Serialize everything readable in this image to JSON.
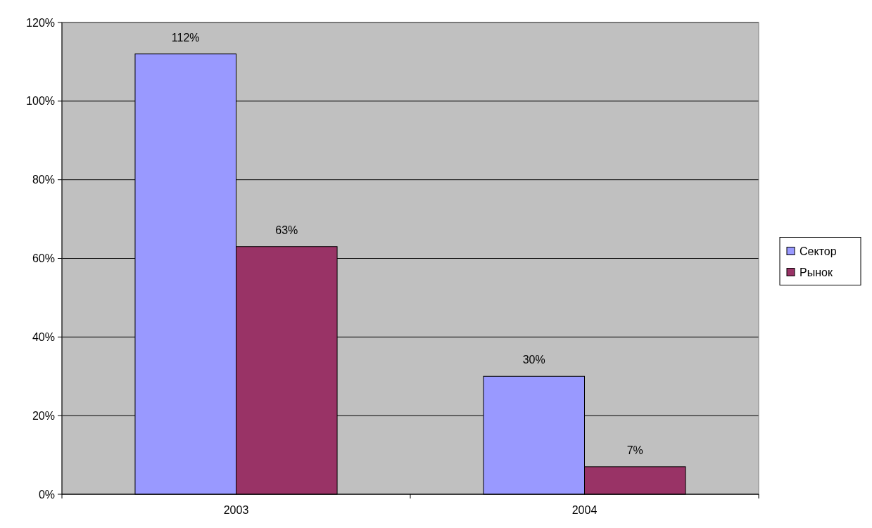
{
  "chart_data": {
    "type": "bar",
    "categories": [
      "2003",
      "2004"
    ],
    "series": [
      {
        "name": "Сектор",
        "color": "#9999ff",
        "values": [
          112,
          30
        ],
        "value_labels": [
          "112%",
          "30%"
        ]
      },
      {
        "name": "Рынок",
        "color": "#993366",
        "values": [
          63,
          7
        ],
        "value_labels": [
          "63%",
          "7%"
        ]
      }
    ],
    "ylim": [
      0,
      120
    ],
    "yticks": [
      {
        "value": 0,
        "label": "0%"
      },
      {
        "value": 20,
        "label": "20%"
      },
      {
        "value": 40,
        "label": "40%"
      },
      {
        "value": 60,
        "label": "60%"
      },
      {
        "value": 80,
        "label": "80%"
      },
      {
        "value": 100,
        "label": "100%"
      },
      {
        "value": 120,
        "label": "120%"
      }
    ],
    "grid": "y",
    "legend": "right"
  }
}
